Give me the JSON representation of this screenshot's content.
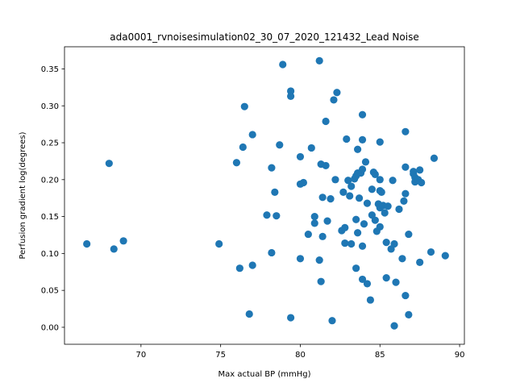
{
  "chart_data": {
    "type": "scatter",
    "title": "ada0001_rvnoisesimulation02_30_07_2020_121432_Lead Noise",
    "xlabel": "Max actual BP (mmHg)",
    "ylabel": "Perfusion gradient log(degrees)",
    "xlim": [
      65.2,
      90.3
    ],
    "ylim": [
      -0.023,
      0.38
    ],
    "xticks": [
      70,
      75,
      80,
      85,
      90
    ],
    "yticks": [
      0.0,
      0.05,
      0.1,
      0.15,
      0.2,
      0.25,
      0.3,
      0.35
    ],
    "xtick_labels": [
      "70",
      "75",
      "80",
      "85",
      "90"
    ],
    "ytick_labels": [
      "0.00",
      "0.05",
      "0.10",
      "0.15",
      "0.20",
      "0.25",
      "0.30",
      "0.35"
    ],
    "grid": false,
    "marker_color": "#1f77b4",
    "series": [
      {
        "points": [
          [
            66.6,
            0.113
          ],
          [
            68.0,
            0.222
          ],
          [
            68.3,
            0.106
          ],
          [
            68.9,
            0.117
          ],
          [
            74.9,
            0.113
          ],
          [
            76.0,
            0.223
          ],
          [
            76.2,
            0.08
          ],
          [
            76.4,
            0.244
          ],
          [
            76.5,
            0.299
          ],
          [
            76.8,
            0.018
          ],
          [
            77.0,
            0.261
          ],
          [
            77.0,
            0.084
          ],
          [
            77.9,
            0.152
          ],
          [
            78.2,
            0.216
          ],
          [
            78.2,
            0.101
          ],
          [
            78.4,
            0.183
          ],
          [
            78.5,
            0.151
          ],
          [
            78.7,
            0.247
          ],
          [
            78.9,
            0.356
          ],
          [
            79.4,
            0.32
          ],
          [
            79.4,
            0.313
          ],
          [
            79.4,
            0.013
          ],
          [
            80.0,
            0.231
          ],
          [
            80.0,
            0.194
          ],
          [
            80.0,
            0.093
          ],
          [
            80.2,
            0.196
          ],
          [
            80.5,
            0.126
          ],
          [
            80.7,
            0.243
          ],
          [
            80.9,
            0.15
          ],
          [
            80.9,
            0.141
          ],
          [
            81.2,
            0.361
          ],
          [
            81.2,
            0.091
          ],
          [
            81.3,
            0.221
          ],
          [
            81.3,
            0.062
          ],
          [
            81.4,
            0.176
          ],
          [
            81.4,
            0.123
          ],
          [
            81.6,
            0.219
          ],
          [
            81.6,
            0.279
          ],
          [
            81.7,
            0.144
          ],
          [
            81.9,
            0.174
          ],
          [
            82.0,
            0.009
          ],
          [
            82.1,
            0.308
          ],
          [
            82.2,
            0.2
          ],
          [
            82.3,
            0.318
          ],
          [
            82.6,
            0.131
          ],
          [
            82.7,
            0.183
          ],
          [
            82.8,
            0.135
          ],
          [
            82.8,
            0.114
          ],
          [
            82.9,
            0.255
          ],
          [
            83.0,
            0.199
          ],
          [
            83.1,
            0.178
          ],
          [
            83.2,
            0.191
          ],
          [
            83.2,
            0.113
          ],
          [
            83.4,
            0.201
          ],
          [
            83.5,
            0.205
          ],
          [
            83.5,
            0.146
          ],
          [
            83.5,
            0.08
          ],
          [
            83.6,
            0.128
          ],
          [
            83.6,
            0.209
          ],
          [
            83.6,
            0.241
          ],
          [
            83.7,
            0.175
          ],
          [
            83.8,
            0.209
          ],
          [
            83.9,
            0.214
          ],
          [
            83.9,
            0.11
          ],
          [
            83.9,
            0.288
          ],
          [
            83.9,
            0.254
          ],
          [
            83.9,
            0.065
          ],
          [
            84.0,
            0.14
          ],
          [
            84.1,
            0.224
          ],
          [
            84.2,
            0.168
          ],
          [
            84.2,
            0.059
          ],
          [
            84.4,
            0.037
          ],
          [
            84.5,
            0.187
          ],
          [
            84.5,
            0.152
          ],
          [
            84.6,
            0.21
          ],
          [
            84.7,
            0.145
          ],
          [
            84.7,
            0.207
          ],
          [
            84.8,
            0.13
          ],
          [
            84.9,
            0.167
          ],
          [
            85.0,
            0.251
          ],
          [
            85.0,
            0.185
          ],
          [
            85.0,
            0.2
          ],
          [
            85.0,
            0.162
          ],
          [
            85.0,
            0.136
          ],
          [
            85.1,
            0.183
          ],
          [
            85.2,
            0.165
          ],
          [
            85.3,
            0.155
          ],
          [
            85.4,
            0.115
          ],
          [
            85.4,
            0.067
          ],
          [
            85.5,
            0.164
          ],
          [
            85.7,
            0.106
          ],
          [
            85.8,
            0.199
          ],
          [
            85.9,
            0.113
          ],
          [
            85.9,
            0.002
          ],
          [
            86.0,
            0.061
          ],
          [
            86.2,
            0.16
          ],
          [
            86.4,
            0.093
          ],
          [
            86.5,
            0.171
          ],
          [
            86.6,
            0.217
          ],
          [
            86.6,
            0.181
          ],
          [
            86.6,
            0.265
          ],
          [
            86.6,
            0.043
          ],
          [
            86.8,
            0.126
          ],
          [
            86.8,
            0.017
          ],
          [
            87.1,
            0.208
          ],
          [
            87.1,
            0.211
          ],
          [
            87.2,
            0.203
          ],
          [
            87.2,
            0.197
          ],
          [
            87.4,
            0.2
          ],
          [
            87.5,
            0.213
          ],
          [
            87.5,
            0.088
          ],
          [
            87.6,
            0.196
          ],
          [
            88.2,
            0.102
          ],
          [
            88.4,
            0.229
          ],
          [
            89.1,
            0.097
          ]
        ]
      }
    ]
  }
}
